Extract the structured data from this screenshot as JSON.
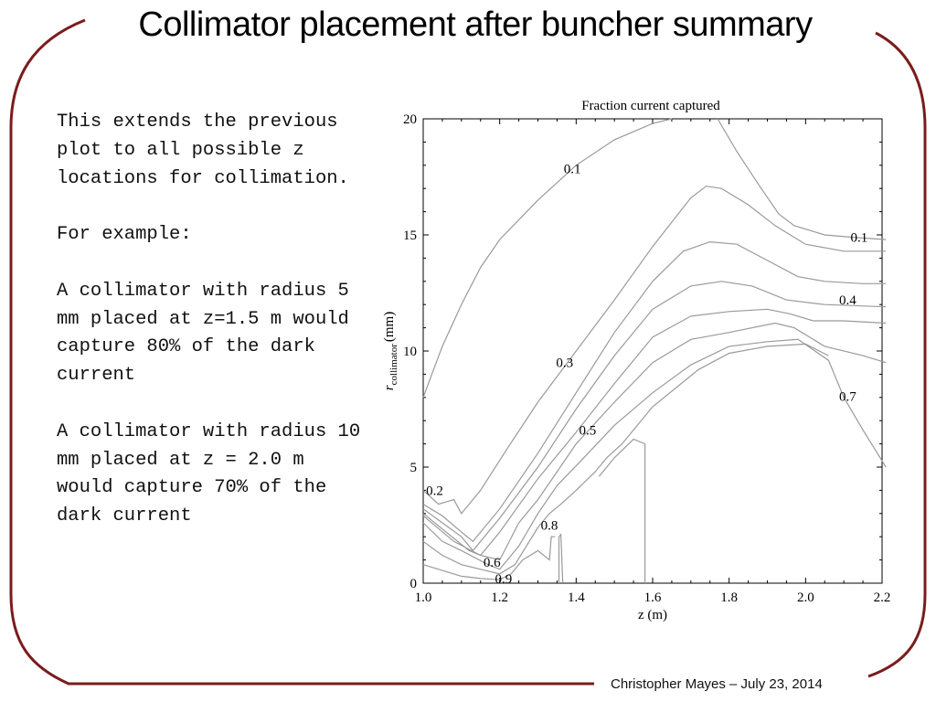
{
  "slide": {
    "title": "Collimator placement after buncher summary",
    "paragraphs": [
      "This extends the previous plot to all possible z locations for collimation.",
      "For example:",
      "A collimator with radius 5 mm placed at z=1.5 m would capture 80% of the dark current",
      "A collimator with radius 10 mm placed at z = 2.0 m would capture 70% of the dark current"
    ],
    "footer": "Christopher Mayes – July 23, 2014",
    "accent_color": "#7a1c1c"
  },
  "chart_data": {
    "type": "contour",
    "title": "Fraction current captured",
    "xlabel": "z (m)",
    "ylabel_main": "r",
    "ylabel_sub": "collimator",
    "ylabel_unit": "(mm)",
    "xlim": [
      1.0,
      2.2
    ],
    "ylim": [
      0,
      20
    ],
    "xticks": [
      1.0,
      1.2,
      1.4,
      1.6,
      1.8,
      2.0,
      2.2
    ],
    "xtick_labels": [
      "1.0",
      "1.2",
      "1.4",
      "1.6",
      "1.8",
      "2.0",
      "2.2"
    ],
    "yticks": [
      0,
      5,
      10,
      15,
      20
    ],
    "ytick_labels": [
      "0",
      "5",
      "10",
      "15",
      "20"
    ],
    "line_color": "#9a9a9a",
    "contours": [
      {
        "level": "0.1",
        "points": [
          [
            1.0,
            8.0
          ],
          [
            1.05,
            10.2
          ],
          [
            1.1,
            12.0
          ],
          [
            1.15,
            13.6
          ],
          [
            1.2,
            14.8
          ],
          [
            1.3,
            16.5
          ],
          [
            1.4,
            18.0
          ],
          [
            1.5,
            19.1
          ],
          [
            1.6,
            19.8
          ],
          [
            1.65,
            20.0
          ]
        ]
      },
      {
        "level": "0.1",
        "points": [
          [
            1.77,
            20.0
          ],
          [
            1.82,
            18.6
          ],
          [
            1.88,
            17.1
          ],
          [
            1.93,
            15.9
          ],
          [
            1.97,
            15.4
          ],
          [
            2.05,
            15.0
          ],
          [
            2.12,
            14.9
          ],
          [
            2.21,
            14.8
          ]
        ]
      },
      {
        "level": "0.2",
        "points": [
          [
            1.0,
            4.0
          ],
          [
            1.04,
            3.4
          ],
          [
            1.08,
            3.6
          ],
          [
            1.1,
            3.0
          ],
          [
            1.15,
            4.0
          ],
          [
            1.22,
            5.8
          ],
          [
            1.3,
            7.8
          ],
          [
            1.4,
            10.0
          ],
          [
            1.5,
            12.2
          ],
          [
            1.6,
            14.5
          ],
          [
            1.7,
            16.6
          ],
          [
            1.74,
            17.1
          ],
          [
            1.78,
            17.0
          ],
          [
            1.85,
            16.3
          ],
          [
            1.92,
            15.4
          ],
          [
            2.0,
            14.6
          ],
          [
            2.1,
            14.3
          ],
          [
            2.21,
            14.3
          ]
        ]
      },
      {
        "level": "0.3",
        "points": [
          [
            1.0,
            3.4
          ],
          [
            1.05,
            2.9
          ],
          [
            1.1,
            2.2
          ],
          [
            1.13,
            1.8
          ],
          [
            1.2,
            3.2
          ],
          [
            1.3,
            5.6
          ],
          [
            1.4,
            8.2
          ],
          [
            1.5,
            10.8
          ],
          [
            1.6,
            13.0
          ],
          [
            1.68,
            14.3
          ],
          [
            1.75,
            14.7
          ],
          [
            1.82,
            14.6
          ],
          [
            1.9,
            13.9
          ],
          [
            1.98,
            13.2
          ],
          [
            2.05,
            13.0
          ],
          [
            2.15,
            12.9
          ],
          [
            2.21,
            12.9
          ]
        ]
      },
      {
        "level": "0.4",
        "points": [
          [
            1.0,
            3.2
          ],
          [
            1.05,
            2.6
          ],
          [
            1.1,
            2.0
          ],
          [
            1.13,
            1.4
          ],
          [
            1.2,
            2.8
          ],
          [
            1.3,
            5.0
          ],
          [
            1.4,
            7.5
          ],
          [
            1.5,
            9.8
          ],
          [
            1.6,
            11.8
          ],
          [
            1.7,
            12.8
          ],
          [
            1.78,
            13.0
          ],
          [
            1.86,
            12.8
          ],
          [
            1.95,
            12.2
          ],
          [
            2.05,
            12.0
          ],
          [
            2.21,
            11.9
          ]
        ]
      },
      {
        "level": "0.5",
        "points": [
          [
            1.0,
            3.0
          ],
          [
            1.06,
            2.2
          ],
          [
            1.12,
            1.4
          ],
          [
            1.15,
            1.2
          ],
          [
            1.2,
            2.2
          ],
          [
            1.3,
            4.5
          ],
          [
            1.4,
            6.5
          ],
          [
            1.5,
            8.6
          ],
          [
            1.6,
            10.6
          ],
          [
            1.7,
            11.5
          ],
          [
            1.8,
            11.7
          ],
          [
            1.9,
            11.8
          ],
          [
            1.96,
            11.6
          ],
          [
            2.02,
            11.3
          ],
          [
            2.1,
            11.3
          ],
          [
            2.21,
            11.2
          ]
        ]
      },
      {
        "level": "0.6",
        "points": [
          [
            1.0,
            2.9
          ],
          [
            1.08,
            1.8
          ],
          [
            1.15,
            1.2
          ],
          [
            1.2,
            1.0
          ],
          [
            1.25,
            2.6
          ],
          [
            1.3,
            3.6
          ],
          [
            1.35,
            4.8
          ],
          [
            1.4,
            6.0
          ],
          [
            1.5,
            7.8
          ],
          [
            1.6,
            9.5
          ],
          [
            1.7,
            10.5
          ],
          [
            1.8,
            10.8
          ],
          [
            1.92,
            11.2
          ],
          [
            1.97,
            11.0
          ],
          [
            2.05,
            10.2
          ],
          [
            2.15,
            9.8
          ],
          [
            2.21,
            9.5
          ]
        ]
      },
      {
        "level": "0.7",
        "points": [
          [
            1.0,
            2.6
          ],
          [
            1.05,
            1.8
          ],
          [
            1.1,
            1.4
          ],
          [
            1.17,
            0.8
          ],
          [
            1.2,
            0.6
          ],
          [
            1.25,
            1.6
          ],
          [
            1.3,
            3.0
          ],
          [
            1.35,
            4.2
          ],
          [
            1.42,
            5.4
          ],
          [
            1.5,
            6.8
          ],
          [
            1.6,
            8.2
          ],
          [
            1.7,
            9.4
          ],
          [
            1.8,
            10.2
          ],
          [
            1.9,
            10.4
          ],
          [
            1.98,
            10.5
          ],
          [
            2.06,
            9.6
          ],
          [
            2.1,
            8.0
          ],
          [
            2.15,
            6.6
          ],
          [
            2.21,
            5.0
          ]
        ]
      },
      {
        "level": "0.8",
        "points": [
          [
            1.0,
            1.8
          ],
          [
            1.05,
            1.2
          ],
          [
            1.1,
            0.8
          ],
          [
            1.15,
            0.6
          ],
          [
            1.2,
            0.4
          ],
          [
            1.24,
            0.8
          ],
          [
            1.27,
            1.6
          ],
          [
            1.3,
            2.4
          ],
          [
            1.33,
            3.0
          ],
          [
            1.36,
            3.4
          ],
          [
            1.4,
            4.0
          ],
          [
            1.45,
            4.8
          ],
          [
            1.48,
            5.4
          ],
          [
            1.52,
            6.0
          ],
          [
            1.56,
            6.8
          ],
          [
            1.6,
            7.6
          ],
          [
            1.66,
            8.4
          ],
          [
            1.72,
            9.2
          ],
          [
            1.8,
            9.9
          ],
          [
            1.9,
            10.2
          ],
          [
            2.0,
            10.3
          ],
          [
            2.06,
            9.8
          ]
        ]
      },
      {
        "level": "0.9",
        "points": [
          [
            1.0,
            0.8
          ],
          [
            1.04,
            0.6
          ],
          [
            1.1,
            0.3
          ],
          [
            1.15,
            0.2
          ],
          [
            1.2,
            0.15
          ],
          [
            1.23,
            0.4
          ],
          [
            1.26,
            1.0
          ],
          [
            1.3,
            1.4
          ],
          [
            1.33,
            1.0
          ],
          [
            1.335,
            2.0
          ],
          [
            1.345,
            2.0
          ]
        ]
      },
      {
        "level": "",
        "points": [
          [
            1.355,
            0.0
          ],
          [
            1.355,
            2.0
          ],
          [
            1.36,
            2.1
          ],
          [
            1.365,
            0.0
          ]
        ]
      },
      {
        "level": "",
        "points": [
          [
            1.58,
            0.0
          ],
          [
            1.58,
            6.0
          ],
          [
            1.55,
            6.2
          ],
          [
            1.5,
            5.4
          ],
          [
            1.46,
            4.6
          ]
        ]
      }
    ],
    "contour_labels": [
      {
        "text": "0.1",
        "x": 1.39,
        "y": 17.85
      },
      {
        "text": "0.1",
        "x": 2.14,
        "y": 14.9
      },
      {
        "text": "0.2",
        "x": 1.03,
        "y": 4.0
      },
      {
        "text": "0.3",
        "x": 1.37,
        "y": 9.5
      },
      {
        "text": "0.4",
        "x": 2.11,
        "y": 12.2
      },
      {
        "text": "0.5",
        "x": 1.43,
        "y": 6.6
      },
      {
        "text": "0.6",
        "x": 1.18,
        "y": 0.9
      },
      {
        "text": "0.7",
        "x": 2.11,
        "y": 8.05
      },
      {
        "text": "0.8",
        "x": 1.33,
        "y": 2.5
      },
      {
        "text": "0.9",
        "x": 1.21,
        "y": 0.2
      }
    ]
  }
}
